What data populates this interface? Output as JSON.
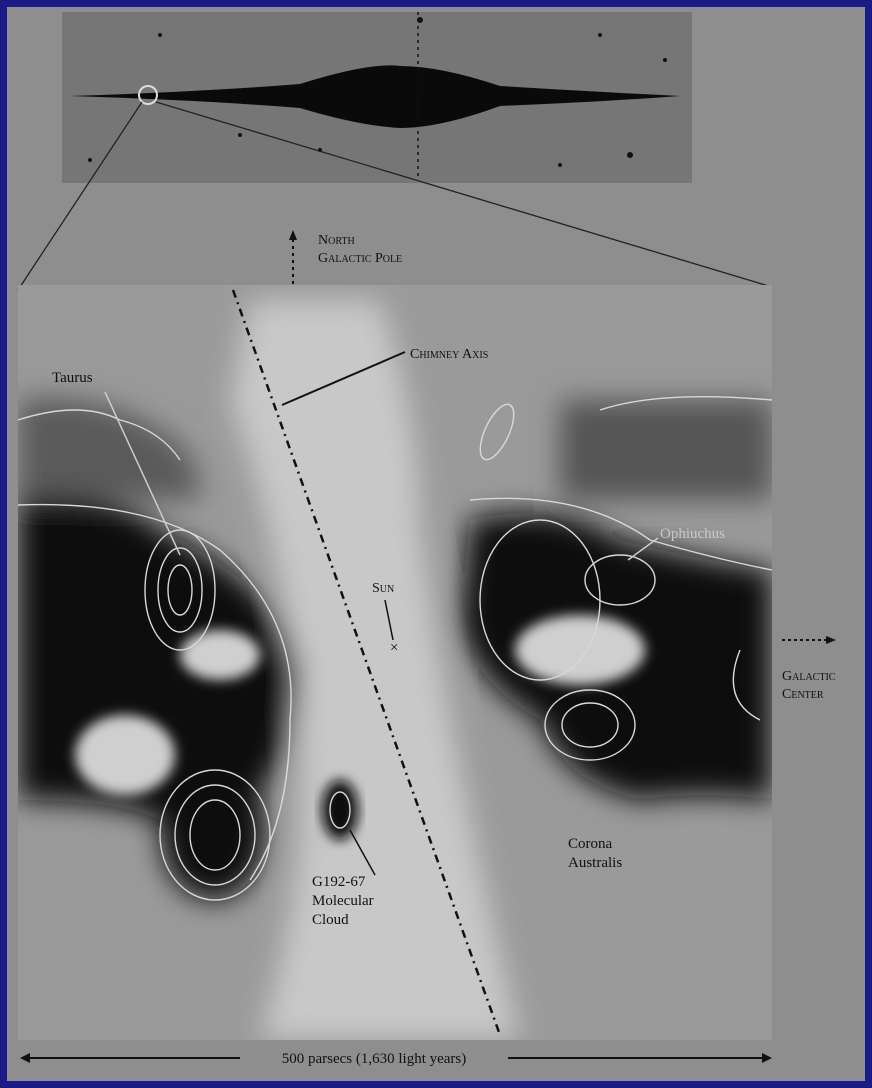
{
  "labels": {
    "north_galactic_pole": [
      "North",
      "Galactic Pole"
    ],
    "chimney_axis": "Chimney Axis",
    "taurus": "Taurus",
    "ophiuchus": "Ophiuchus",
    "sun": "Sun",
    "galactic_center": [
      "Galactic",
      "Center"
    ],
    "corona_australis": [
      "Corona",
      "Australis"
    ],
    "cloud": [
      "G192-67",
      "Molecular",
      "Cloud"
    ]
  },
  "scale_bar": "500 parsecs (1,630 light years)"
}
